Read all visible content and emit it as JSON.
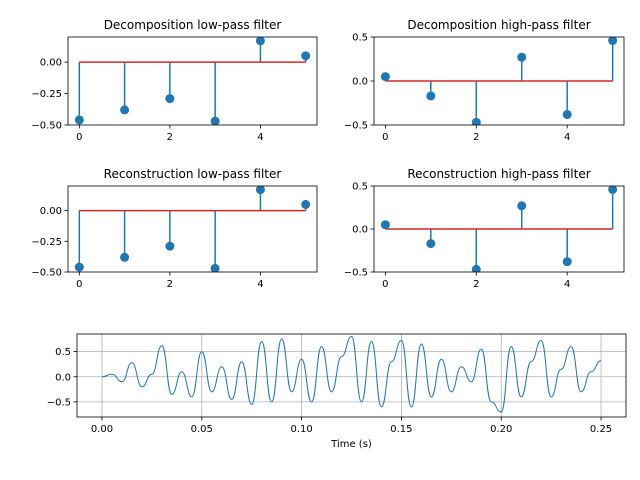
{
  "chart_data": [
    {
      "type": "stem",
      "title": "Decomposition low-pass filter",
      "x": [
        0,
        1,
        2,
        3,
        4,
        5
      ],
      "values": [
        -0.46,
        -0.38,
        -0.29,
        -0.47,
        0.17,
        0.05
      ],
      "baseline": 0,
      "xticks": [
        0,
        2,
        4
      ],
      "yticks": [
        -0.5,
        -0.25,
        0.0
      ],
      "ytick_labels": [
        "−0.50",
        "−0.25",
        "0.00"
      ],
      "xlim": [
        -0.25,
        5.25
      ],
      "ylim": [
        -0.5,
        0.2
      ],
      "colors": {
        "stem": "#1f77b4",
        "baseline": "#d62728"
      }
    },
    {
      "type": "stem",
      "title": "Decomposition high-pass filter",
      "x": [
        0,
        1,
        2,
        3,
        4,
        5
      ],
      "values": [
        0.05,
        -0.17,
        -0.47,
        0.27,
        -0.38,
        0.46
      ],
      "baseline": 0,
      "xticks": [
        0,
        2,
        4
      ],
      "yticks": [
        -0.5,
        0.0,
        0.5
      ],
      "ytick_labels": [
        "−0.5",
        "0.0",
        "0.5"
      ],
      "xlim": [
        -0.25,
        5.25
      ],
      "ylim": [
        -0.5,
        0.5
      ],
      "colors": {
        "stem": "#1f77b4",
        "baseline": "#d62728"
      }
    },
    {
      "type": "stem",
      "title": "Reconstruction low-pass filter",
      "x": [
        0,
        1,
        2,
        3,
        4,
        5
      ],
      "values": [
        -0.46,
        -0.38,
        -0.29,
        -0.47,
        0.17,
        0.05
      ],
      "baseline": 0,
      "xticks": [
        0,
        2,
        4
      ],
      "yticks": [
        -0.5,
        -0.25,
        0.0
      ],
      "ytick_labels": [
        "−0.50",
        "−0.25",
        "0.00"
      ],
      "xlim": [
        -0.25,
        5.25
      ],
      "ylim": [
        -0.5,
        0.2
      ],
      "colors": {
        "stem": "#1f77b4",
        "baseline": "#d62728"
      }
    },
    {
      "type": "stem",
      "title": "Reconstruction high-pass filter",
      "x": [
        0,
        1,
        2,
        3,
        4,
        5
      ],
      "values": [
        0.05,
        -0.17,
        -0.47,
        0.27,
        -0.38,
        0.46
      ],
      "baseline": 0,
      "xticks": [
        0,
        2,
        4
      ],
      "yticks": [
        -0.5,
        0.0,
        0.5
      ],
      "ytick_labels": [
        "−0.5",
        "0.0",
        "0.5"
      ],
      "xlim": [
        -0.25,
        5.25
      ],
      "ylim": [
        -0.5,
        0.5
      ],
      "colors": {
        "stem": "#1f77b4",
        "baseline": "#d62728"
      }
    },
    {
      "type": "line",
      "title": "",
      "xlabel": "Time (s)",
      "ylabel": "",
      "xlim": [
        -0.0125,
        0.2625
      ],
      "ylim": [
        -0.8,
        0.85
      ],
      "xticks": [
        0.0,
        0.05,
        0.1,
        0.15,
        0.2,
        0.25
      ],
      "xtick_labels": [
        "0.00",
        "0.05",
        "0.10",
        "0.15",
        "0.20",
        "0.25"
      ],
      "yticks": [
        -0.5,
        0.0,
        0.5
      ],
      "ytick_labels": [
        "−0.5",
        "0.0",
        "0.5"
      ],
      "grid": true,
      "colors": {
        "line": "#1f77b4"
      },
      "series": [
        {
          "x": [
            0.0,
            0.005,
            0.01,
            0.015,
            0.02,
            0.025,
            0.03,
            0.035,
            0.04,
            0.045,
            0.05,
            0.055,
            0.06,
            0.065,
            0.07,
            0.075,
            0.08,
            0.085,
            0.09,
            0.095,
            0.1,
            0.105,
            0.11,
            0.115,
            0.12,
            0.125,
            0.13,
            0.135,
            0.14,
            0.145,
            0.15,
            0.155,
            0.16,
            0.165,
            0.17,
            0.175,
            0.18,
            0.185,
            0.19,
            0.195,
            0.2,
            0.205,
            0.21,
            0.215,
            0.22,
            0.225,
            0.23,
            0.235,
            0.24,
            0.245,
            0.25
          ],
          "values": [
            0.0,
            0.05,
            -0.1,
            0.28,
            -0.2,
            0.05,
            0.62,
            -0.35,
            0.1,
            -0.4,
            0.5,
            -0.3,
            0.2,
            -0.45,
            0.3,
            -0.55,
            0.7,
            -0.5,
            0.75,
            -0.3,
            0.35,
            -0.5,
            0.6,
            -0.3,
            0.4,
            0.8,
            -0.5,
            0.7,
            -0.6,
            0.3,
            0.72,
            -0.6,
            0.65,
            -0.4,
            0.35,
            -0.3,
            0.2,
            -0.1,
            0.55,
            -0.5,
            -0.7,
            0.6,
            -0.4,
            0.3,
            0.72,
            -0.4,
            0.15,
            0.6,
            -0.3,
            0.1,
            0.32
          ]
        }
      ]
    }
  ]
}
